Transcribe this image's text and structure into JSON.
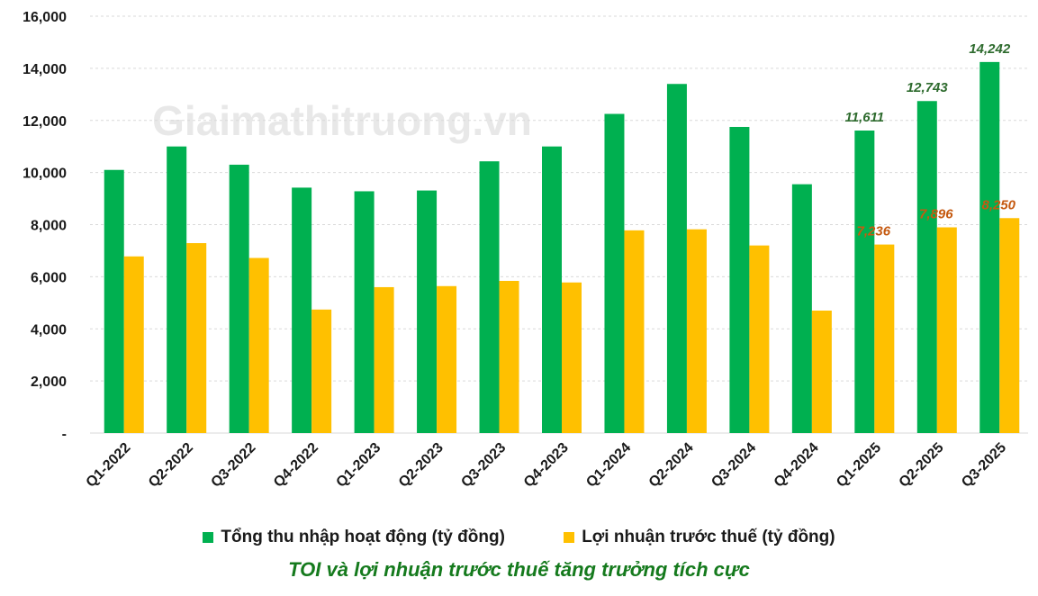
{
  "watermark": "Giaimathitruong.vn",
  "caption": "TOI và lợi nhuận trước thuế tăng trưởng tích cực",
  "colors": {
    "toi": "#00b050",
    "profit": "#ffc000",
    "label_toi": "#2e6b2e",
    "label_profit": "#c55a11"
  },
  "chart_data": {
    "type": "bar",
    "title": "",
    "xlabel": "",
    "ylabel": "",
    "ylim": [
      0,
      16000
    ],
    "yticks": [
      0,
      2000,
      4000,
      6000,
      8000,
      10000,
      12000,
      14000,
      16000
    ],
    "ytick_labels": [
      "-",
      "2,000",
      "4,000",
      "6,000",
      "8,000",
      "10,000",
      "12,000",
      "14,000",
      "16,000"
    ],
    "grid": true,
    "legend_position": "bottom",
    "categories": [
      "Q1-2022",
      "Q2-2022",
      "Q3-2022",
      "Q4-2022",
      "Q1-2023",
      "Q2-2023",
      "Q3-2023",
      "Q4-2023",
      "Q1-2024",
      "Q2-2024",
      "Q3-2024",
      "Q4-2024",
      "Q1-2025",
      "Q2-2025",
      "Q3-2025"
    ],
    "series": [
      {
        "name": "Tổng thu nhập hoạt động (tỷ đồng)",
        "color": "#00b050",
        "values": [
          10100,
          11000,
          10300,
          9420,
          9280,
          9310,
          10430,
          11000,
          12250,
          13400,
          11750,
          9550,
          11611,
          12743,
          14242
        ],
        "data_labels": [
          "",
          "",
          "",
          "",
          "",
          "",
          "",
          "",
          "",
          "",
          "",
          "",
          "11,611",
          "12,743",
          "14,242"
        ]
      },
      {
        "name": "Lợi nhuận trước thuế (tỷ đồng)",
        "color": "#ffc000",
        "values": [
          6780,
          7290,
          6720,
          4740,
          5600,
          5640,
          5840,
          5780,
          7780,
          7820,
          7200,
          4700,
          7236,
          7896,
          8250
        ],
        "data_labels": [
          "",
          "",
          "",
          "",
          "",
          "",
          "",
          "",
          "",
          "",
          "",
          "",
          "7,236",
          "7,896",
          "8,250"
        ]
      }
    ]
  }
}
